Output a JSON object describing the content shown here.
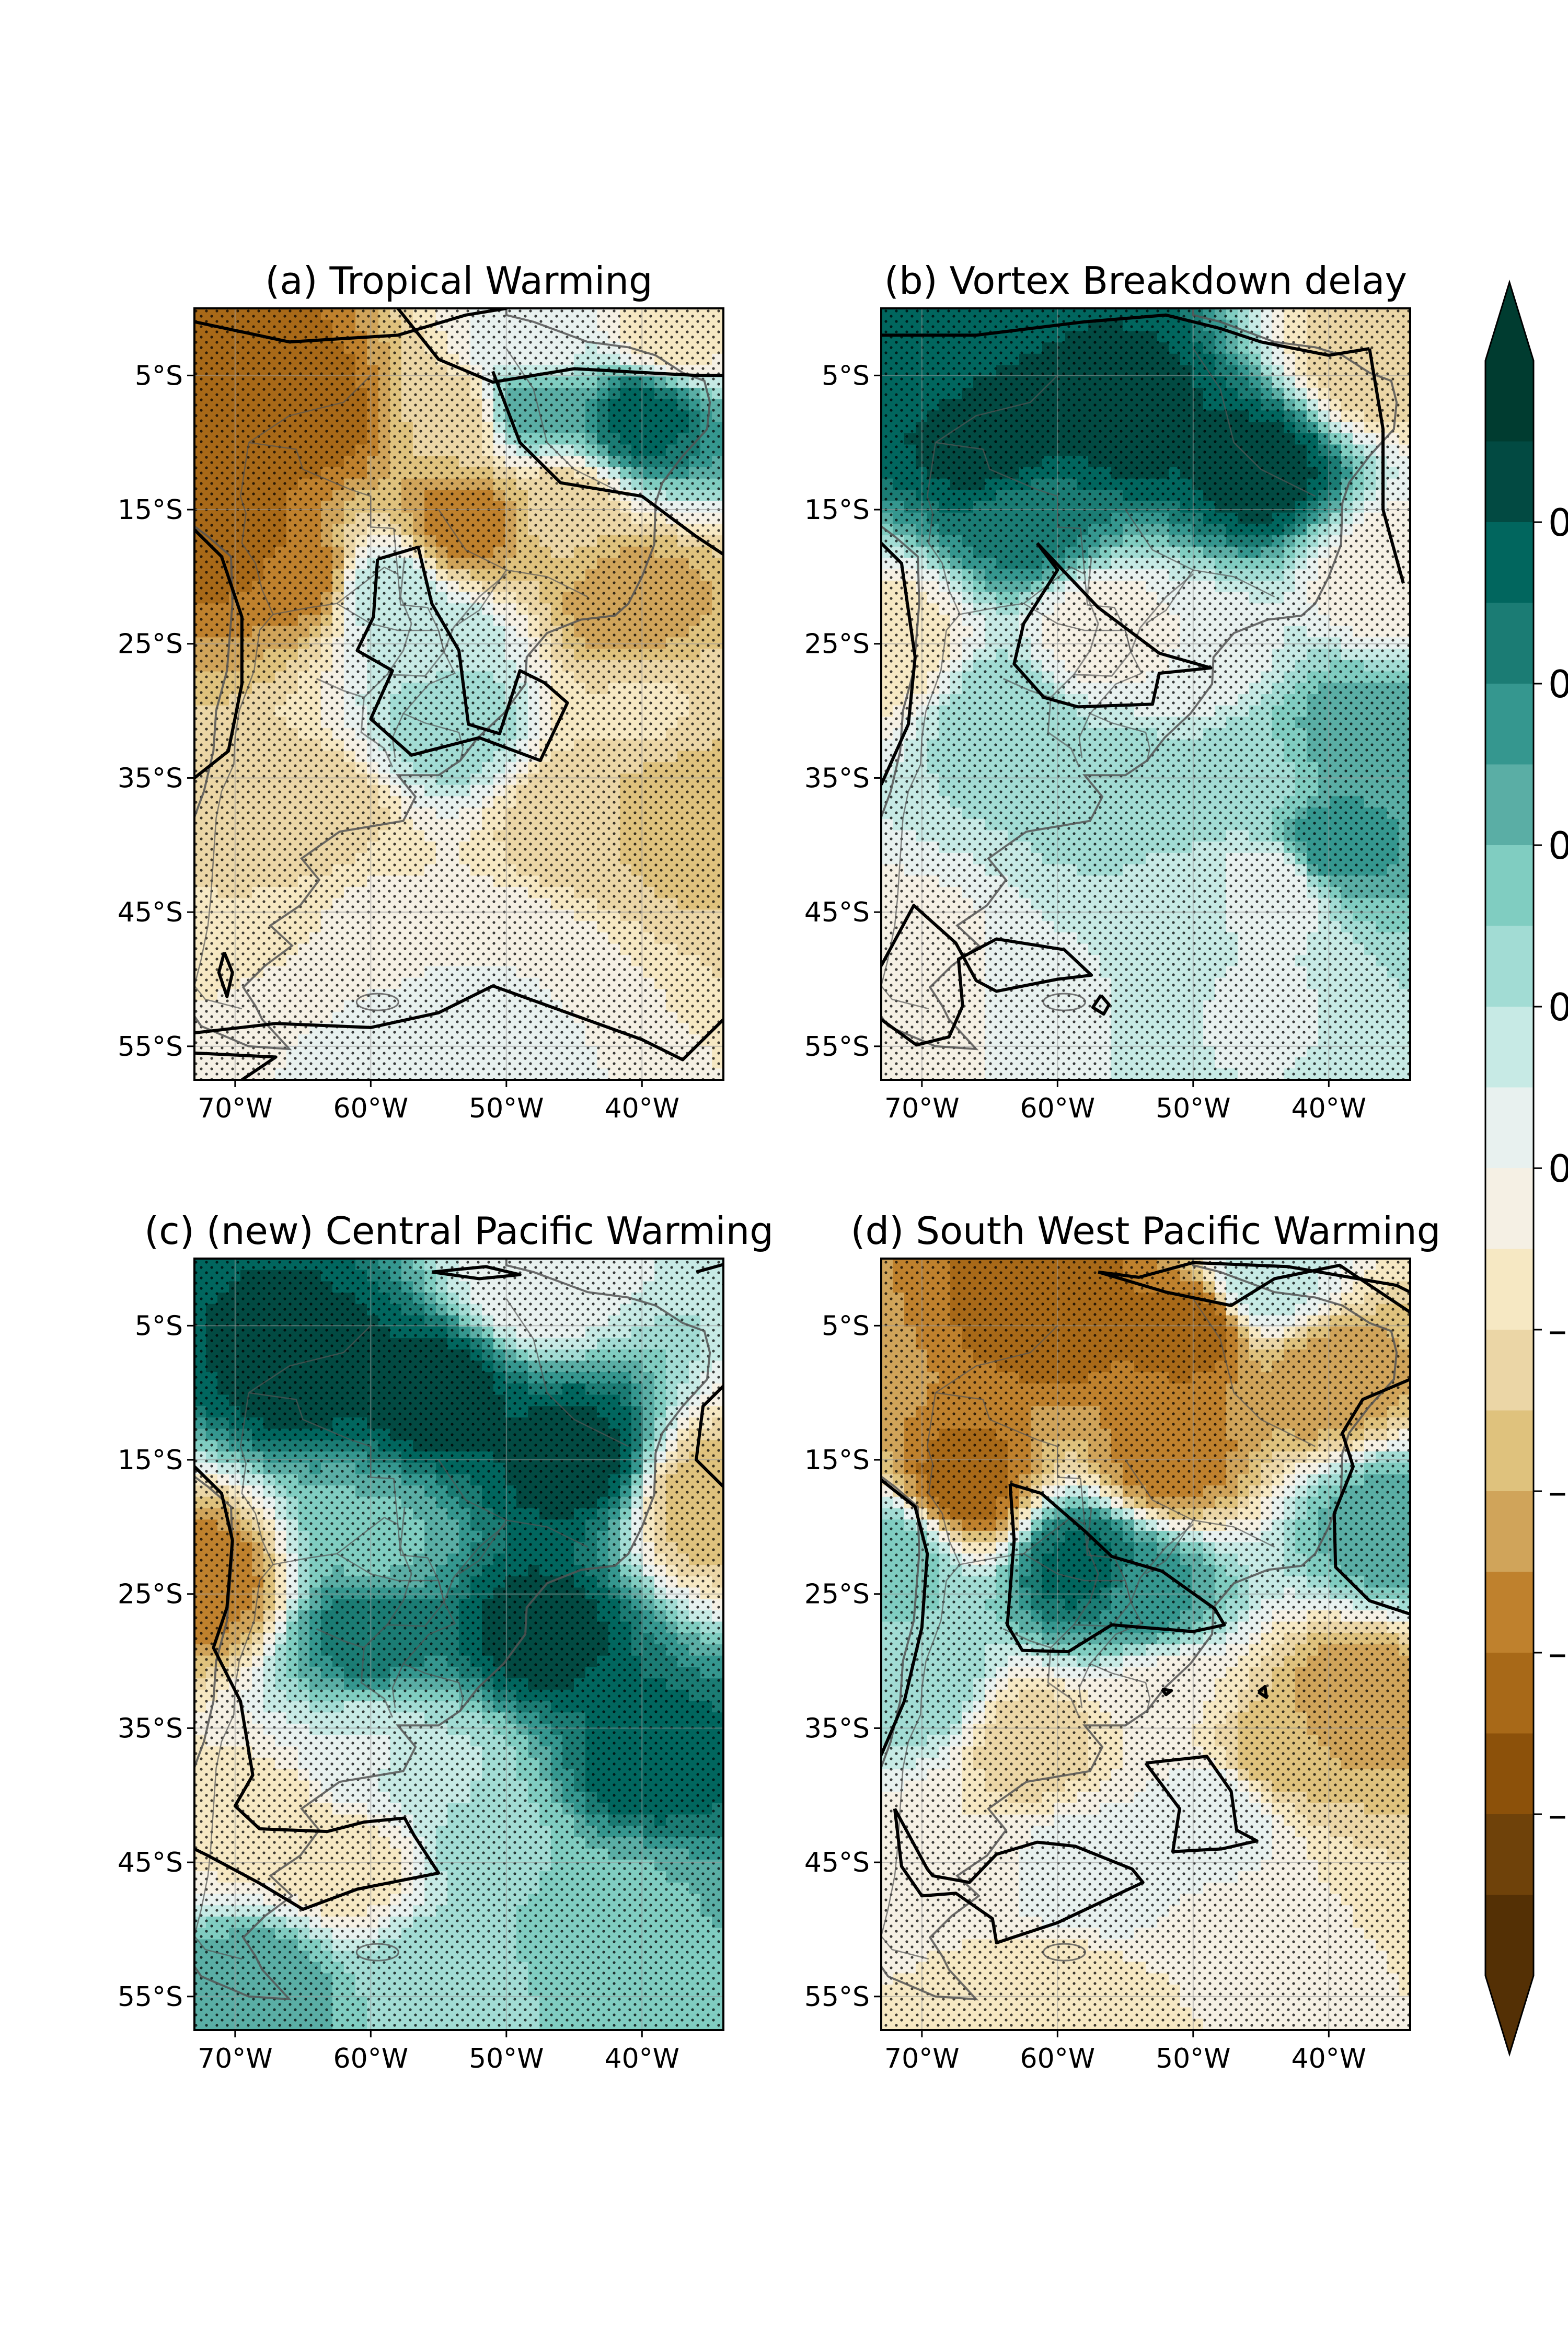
{
  "figure": {
    "panels": [
      {
        "title": "(a) Tropical Warming"
      },
      {
        "title": "(b) Vortex Breakdown delay"
      },
      {
        "title": "(c) (new) Central Pacific Warming"
      },
      {
        "title": "(d) South West Pacific Warming"
      }
    ],
    "lat_ticks": [
      "5°S",
      "15°S",
      "25°S",
      "35°S",
      "45°S",
      "55°S"
    ],
    "lon_ticks": [
      "70°W",
      "60°W",
      "50°W",
      "40°W"
    ],
    "colorbar": {
      "tick_labels": [
        "0",
        "0",
        "0",
        "0",
        "0",
        "–",
        "–",
        "–",
        "–"
      ],
      "colors": [
        "#543005",
        "#6f420a",
        "#8c510a",
        "#a86918",
        "#bf812d",
        "#d0a45a",
        "#dfc27d",
        "#ebd6a6",
        "#f6e8c3",
        "#f5f0e4",
        "#e8f1ef",
        "#c7eae5",
        "#a2dcd4",
        "#80cdc1",
        "#5aaea5",
        "#35978f",
        "#1b7c74",
        "#01665e",
        "#024a42",
        "#003c30"
      ]
    }
  },
  "chart_data": {
    "type": "heatmap",
    "description_units": "anomaly map over South America; contours mark significance, stippling marks agreement",
    "lon_range": [
      -73,
      -34
    ],
    "lat_range": [
      -57.5,
      0
    ],
    "panels": [
      {
        "title": "(a) Tropical Warming",
        "field": [
          {
            "lon": -68,
            "lat": -5,
            "v": -7
          },
          {
            "lon": -64,
            "lat": -8,
            "v": -7
          },
          {
            "lon": -70,
            "lat": -17,
            "v": -7
          },
          {
            "lon": -65,
            "lat": -20,
            "v": -6
          },
          {
            "lon": -53,
            "lat": -16,
            "v": -6
          },
          {
            "lon": -41,
            "lat": -22,
            "v": -5
          },
          {
            "lon": -54,
            "lat": -8,
            "v": -3
          },
          {
            "lon": -46,
            "lat": -15,
            "v": -3
          },
          {
            "lon": -40,
            "lat": -8,
            "v": 8
          },
          {
            "lon": -48,
            "lat": -7,
            "v": 5
          },
          {
            "lon": -55,
            "lat": -25,
            "v": 2
          },
          {
            "lon": -54,
            "lat": -31,
            "v": 3
          },
          {
            "lon": -59,
            "lat": -21,
            "v": 2
          },
          {
            "lon": -64,
            "lat": -38,
            "v": -3
          },
          {
            "lon": -45,
            "lat": -38,
            "v": -3
          },
          {
            "lon": -37,
            "lat": -37,
            "v": -4
          },
          {
            "lon": -60,
            "lat": -45,
            "v": -1
          },
          {
            "lon": -50,
            "lat": -49,
            "v": 0
          },
          {
            "lon": -55,
            "lat": -55,
            "v": 1
          },
          {
            "lon": -48,
            "lat": -3,
            "v": 0
          },
          {
            "lon": -38,
            "lat": -2,
            "v": -2
          },
          {
            "lon": -40,
            "lat": -30,
            "v": -2
          }
        ]
      },
      {
        "title": "(b) Vortex Breakdown delay",
        "field": [
          {
            "lon": -55,
            "lat": -8,
            "v": 9
          },
          {
            "lon": -65,
            "lat": -10,
            "v": 9
          },
          {
            "lon": -45,
            "lat": -12,
            "v": 9
          },
          {
            "lon": -70,
            "lat": -3,
            "v": 8
          },
          {
            "lon": -62,
            "lat": -16,
            "v": 7
          },
          {
            "lon": -40,
            "lat": -40,
            "v": 6
          },
          {
            "lon": -38,
            "lat": -32,
            "v": 5
          },
          {
            "lon": -57,
            "lat": -24,
            "v": -1
          },
          {
            "lon": -50,
            "lat": -26,
            "v": 0
          },
          {
            "lon": -64,
            "lat": -30,
            "v": 3
          },
          {
            "lon": -55,
            "lat": -36,
            "v": 3
          },
          {
            "lon": -45,
            "lat": -35,
            "v": 3
          },
          {
            "lon": -72,
            "lat": -25,
            "v": -2
          },
          {
            "lon": -70,
            "lat": -50,
            "v": -1
          },
          {
            "lon": -60,
            "lat": -50,
            "v": 1
          },
          {
            "lon": -45,
            "lat": -52,
            "v": 1
          },
          {
            "lon": -36,
            "lat": -20,
            "v": -1
          },
          {
            "lon": -37,
            "lat": -4,
            "v": -3
          },
          {
            "lon": -52,
            "lat": -44,
            "v": 2
          },
          {
            "lon": -44,
            "lat": -43,
            "v": 0
          }
        ]
      },
      {
        "title": "(c) (new) Central Pacific Warming",
        "field": [
          {
            "lon": -65,
            "lat": -8,
            "v": 9
          },
          {
            "lon": -55,
            "lat": -10,
            "v": 9
          },
          {
            "lon": -45,
            "lat": -15,
            "v": 9
          },
          {
            "lon": -48,
            "lat": -28,
            "v": 9
          },
          {
            "lon": -40,
            "lat": -38,
            "v": 8
          },
          {
            "lon": -60,
            "lat": -28,
            "v": 7
          },
          {
            "lon": -60,
            "lat": -21,
            "v": 4
          },
          {
            "lon": -72,
            "lat": -24,
            "v": -6
          },
          {
            "lon": -68,
            "lat": -42,
            "v": -2
          },
          {
            "lon": -62,
            "lat": -45,
            "v": -2
          },
          {
            "lon": -55,
            "lat": -38,
            "v": 2
          },
          {
            "lon": -50,
            "lat": -44,
            "v": 3
          },
          {
            "lon": -42,
            "lat": -48,
            "v": 4
          },
          {
            "lon": -68,
            "lat": -54,
            "v": 5
          },
          {
            "lon": -55,
            "lat": -54,
            "v": 3
          },
          {
            "lon": -35,
            "lat": -18,
            "v": -4
          },
          {
            "lon": -48,
            "lat": -2,
            "v": 0
          },
          {
            "lon": -60,
            "lat": -37,
            "v": 1
          }
        ]
      },
      {
        "title": "(d) South West Pacific Warming",
        "field": [
          {
            "lon": -60,
            "lat": -4,
            "v": -7
          },
          {
            "lon": -50,
            "lat": -5,
            "v": -7
          },
          {
            "lon": -67,
            "lat": -17,
            "v": -7
          },
          {
            "lon": -52,
            "lat": -15,
            "v": -6
          },
          {
            "lon": -40,
            "lat": -9,
            "v": -5
          },
          {
            "lon": -58,
            "lat": -23,
            "v": 8
          },
          {
            "lon": -54,
            "lat": -25,
            "v": 6
          },
          {
            "lon": -72,
            "lat": -22,
            "v": 4
          },
          {
            "lon": -70,
            "lat": -32,
            "v": 3
          },
          {
            "lon": -36,
            "lat": -20,
            "v": 5
          },
          {
            "lon": -38,
            "lat": -33,
            "v": -5
          },
          {
            "lon": -44,
            "lat": -37,
            "v": -4
          },
          {
            "lon": -52,
            "lat": -33,
            "v": -1
          },
          {
            "lon": -62,
            "lat": -36,
            "v": -3
          },
          {
            "lon": -48,
            "lat": -41,
            "v": 1
          },
          {
            "lon": -58,
            "lat": -46,
            "v": 1
          },
          {
            "lon": -68,
            "lat": -45,
            "v": -1
          },
          {
            "lon": -60,
            "lat": -55,
            "v": -2
          },
          {
            "lon": -45,
            "lat": -52,
            "v": -1
          },
          {
            "lon": -45,
            "lat": -2,
            "v": 2
          }
        ]
      }
    ]
  }
}
